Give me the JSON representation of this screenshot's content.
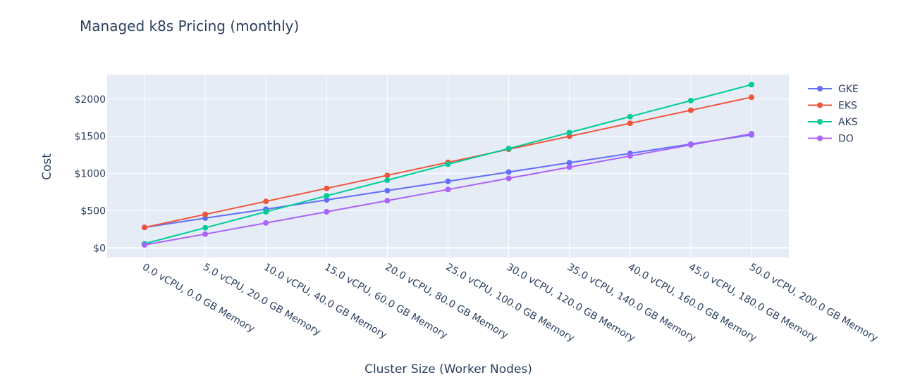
{
  "chart_data": {
    "type": "line",
    "title": "Managed k8s Pricing (monthly)",
    "xlabel": "Cluster Size (Worker Nodes)",
    "ylabel": "Cost",
    "categories": [
      "0.0 vCPU, 0.0 GB Memory",
      "5.0 vCPU, 20.0 GB Memory",
      "10.0 vCPU, 40.0 GB Memory",
      "15.0 vCPU, 60.0 GB Memory",
      "20.0 vCPU, 80.0 GB Memory",
      "25.0 vCPU, 100.0 GB Memory",
      "30.0 vCPU, 120.0 GB Memory",
      "35.0 vCPU, 140.0 GB Memory",
      "40.0 vCPU, 160.0 GB Memory",
      "45.0 vCPU, 180.0 GB Memory",
      "50.0 vCPU, 200.0 GB Memory"
    ],
    "yticks": [
      0,
      500,
      1000,
      1500,
      2000
    ],
    "ytick_labels": [
      "$0",
      "$500",
      "$1000",
      "$1500",
      "$2000"
    ],
    "ylim": [
      -130,
      2330
    ],
    "grid": true,
    "legend_position": "top-right",
    "series": [
      {
        "name": "GKE",
        "color": "#636efa",
        "values": [
          275,
          400,
          520,
          645,
          770,
          895,
          1020,
          1145,
          1270,
          1395,
          1520
        ]
      },
      {
        "name": "EKS",
        "color": "#ef553b",
        "values": [
          275,
          450,
          625,
          800,
          975,
          1150,
          1325,
          1500,
          1675,
          1850,
          2025
        ]
      },
      {
        "name": "AKS",
        "color": "#00cc96",
        "values": [
          55,
          270,
          485,
          700,
          910,
          1125,
          1335,
          1550,
          1765,
          1980,
          2195
        ]
      },
      {
        "name": "DO",
        "color": "#ab63fa",
        "values": [
          40,
          185,
          335,
          485,
          635,
          785,
          935,
          1085,
          1235,
          1385,
          1535
        ]
      }
    ]
  }
}
